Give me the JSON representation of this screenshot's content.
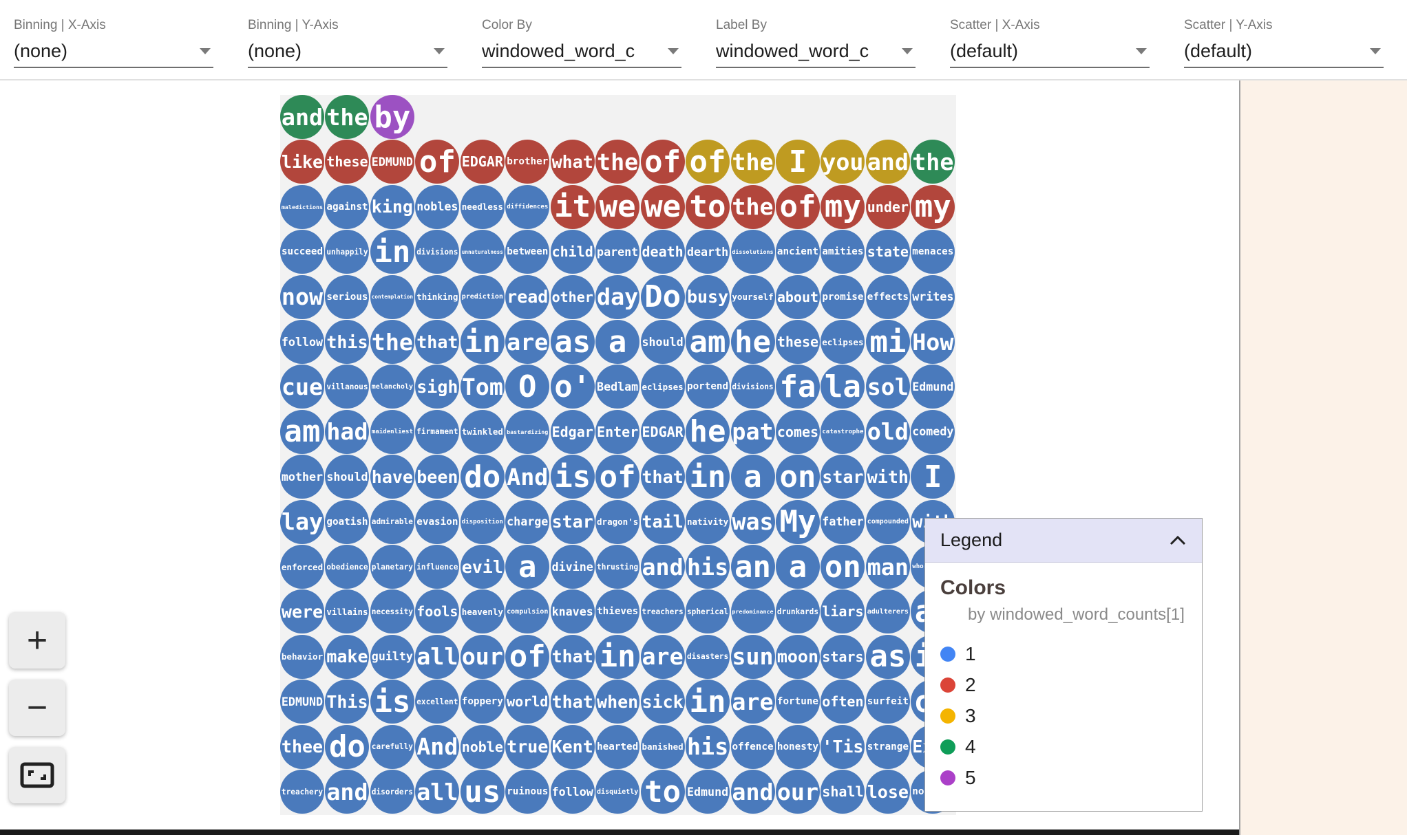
{
  "toolbar": {
    "controls": [
      {
        "label": "Binning | X-Axis",
        "value": "(none)"
      },
      {
        "label": "Binning | Y-Axis",
        "value": "(none)"
      },
      {
        "label": "Color By",
        "value": "windowed_word_c"
      },
      {
        "label": "Label By",
        "value": "windowed_word_c"
      },
      {
        "label": "Scatter | X-Axis",
        "value": "(default)"
      },
      {
        "label": "Scatter | Y-Axis",
        "value": "(default)"
      }
    ]
  },
  "colors": {
    "plot_background": "#f2f2f2",
    "side_panel_background": "#fcf2e8",
    "legend_header_background": "#e3e3f6",
    "bottom_bar": "#1a1a1a",
    "bubble_palette": {
      "1": "#4a7abc",
      "2": "#b2463c",
      "3": "#bf9b21",
      "4": "#2e8a57",
      "5": "#9c51c2"
    }
  },
  "legend": {
    "title": "Legend",
    "collapse_icon": "chevron-up-icon",
    "section_title": "Colors",
    "subtitle": "by windowed_word_counts[1]",
    "items": [
      {
        "label": "1",
        "color": "#4285f4"
      },
      {
        "label": "2",
        "color": "#db4437"
      },
      {
        "label": "3",
        "color": "#f4b400"
      },
      {
        "label": "4",
        "color": "#0f9d58"
      },
      {
        "label": "5",
        "color": "#ab40c8"
      }
    ]
  },
  "zoom_controls": {
    "zoom_in": "+",
    "zoom_out": "−",
    "fit_icon": "fit-to-screen-icon"
  },
  "grid": {
    "rows": [
      [
        [
          "and",
          4
        ],
        [
          "the",
          4
        ],
        [
          "by",
          5
        ]
      ],
      [
        [
          "like",
          2
        ],
        [
          "these",
          2
        ],
        [
          "EDMUND",
          2
        ],
        [
          "of",
          2
        ],
        [
          "EDGAR",
          2
        ],
        [
          "brother",
          2
        ],
        [
          "what",
          2
        ],
        [
          "the",
          2
        ],
        [
          "of",
          2
        ],
        [
          "of",
          3
        ],
        [
          "the",
          3
        ],
        [
          "I",
          3
        ],
        [
          "you",
          3
        ],
        [
          "and",
          3
        ],
        [
          "the",
          4
        ]
      ],
      [
        [
          "maledictions",
          1
        ],
        [
          "against",
          1
        ],
        [
          "king",
          1
        ],
        [
          "nobles",
          1
        ],
        [
          "needless",
          1
        ],
        [
          "diffidences",
          1
        ],
        [
          "it",
          2
        ],
        [
          "we",
          2
        ],
        [
          "we",
          2
        ],
        [
          "to",
          2
        ],
        [
          "the",
          2
        ],
        [
          "of",
          2
        ],
        [
          "my",
          2
        ],
        [
          "under",
          2
        ],
        [
          "my",
          2
        ]
      ],
      [
        [
          "succeed",
          1
        ],
        [
          "unhappily",
          1
        ],
        [
          "in",
          1
        ],
        [
          "divisions",
          1
        ],
        [
          "unnaturalness",
          1
        ],
        [
          "between",
          1
        ],
        [
          "child",
          1
        ],
        [
          "parent",
          1
        ],
        [
          "death",
          1
        ],
        [
          "dearth",
          1
        ],
        [
          "dissolutions",
          1
        ],
        [
          "ancient",
          1
        ],
        [
          "amities",
          1
        ],
        [
          "state",
          1
        ],
        [
          "menaces",
          1
        ]
      ],
      [
        [
          "now",
          1
        ],
        [
          "serious",
          1
        ],
        [
          "contemplation",
          1
        ],
        [
          "thinking",
          1
        ],
        [
          "prediction",
          1
        ],
        [
          "read",
          1
        ],
        [
          "other",
          1
        ],
        [
          "day",
          1
        ],
        [
          "Do",
          1
        ],
        [
          "busy",
          1
        ],
        [
          "yourself",
          1
        ],
        [
          "about",
          1
        ],
        [
          "promise",
          1
        ],
        [
          "effects",
          1
        ],
        [
          "writes",
          1
        ]
      ],
      [
        [
          "follow",
          1
        ],
        [
          "this",
          1
        ],
        [
          "the",
          1
        ],
        [
          "that",
          1
        ],
        [
          "in",
          1
        ],
        [
          "are",
          1
        ],
        [
          "as",
          1
        ],
        [
          "a",
          1
        ],
        [
          "should",
          1
        ],
        [
          "am",
          1
        ],
        [
          "he",
          1
        ],
        [
          "these",
          1
        ],
        [
          "eclipses",
          1
        ],
        [
          "mi",
          1
        ],
        [
          "How",
          1
        ]
      ],
      [
        [
          "cue",
          1
        ],
        [
          "villanous",
          1
        ],
        [
          "melancholy",
          1
        ],
        [
          "sigh",
          1
        ],
        [
          "Tom",
          1
        ],
        [
          "O",
          1
        ],
        [
          "o'",
          1
        ],
        [
          "Bedlam",
          1
        ],
        [
          "eclipses",
          1
        ],
        [
          "portend",
          1
        ],
        [
          "divisions",
          1
        ],
        [
          "fa",
          1
        ],
        [
          "la",
          1
        ],
        [
          "sol",
          1
        ],
        [
          "Edmund",
          1
        ]
      ],
      [
        [
          "am",
          1
        ],
        [
          "had",
          1
        ],
        [
          "maidenliest",
          1
        ],
        [
          "firmament",
          1
        ],
        [
          "twinkled",
          1
        ],
        [
          "bastardizing",
          1
        ],
        [
          "Edgar",
          1
        ],
        [
          "Enter",
          1
        ],
        [
          "EDGAR",
          1
        ],
        [
          "he",
          1
        ],
        [
          "pat",
          1
        ],
        [
          "comes",
          1
        ],
        [
          "catastrophe",
          1
        ],
        [
          "old",
          1
        ],
        [
          "comedy",
          1
        ]
      ],
      [
        [
          "mother",
          1
        ],
        [
          "should",
          1
        ],
        [
          "have",
          1
        ],
        [
          "been",
          1
        ],
        [
          "do",
          1
        ],
        [
          "And",
          1
        ],
        [
          "is",
          1
        ],
        [
          "of",
          1
        ],
        [
          "that",
          1
        ],
        [
          "in",
          1
        ],
        [
          "a",
          1
        ],
        [
          "on",
          1
        ],
        [
          "star",
          1
        ],
        [
          "with",
          1
        ],
        [
          "I",
          1
        ]
      ],
      [
        [
          "lay",
          1
        ],
        [
          "goatish",
          1
        ],
        [
          "admirable",
          1
        ],
        [
          "evasion",
          1
        ],
        [
          "disposition",
          1
        ],
        [
          "charge",
          1
        ],
        [
          "star",
          1
        ],
        [
          "dragon's",
          1
        ],
        [
          "tail",
          1
        ],
        [
          "nativity",
          1
        ],
        [
          "was",
          1
        ],
        [
          "My",
          1
        ],
        [
          "father",
          1
        ],
        [
          "compounded",
          1
        ],
        [
          "with",
          1
        ]
      ],
      [
        [
          "enforced",
          1
        ],
        [
          "obedience",
          1
        ],
        [
          "planetary",
          1
        ],
        [
          "influence",
          1
        ],
        [
          "evil",
          1
        ],
        [
          "a",
          1
        ],
        [
          "divine",
          1
        ],
        [
          "thrusting",
          1
        ],
        [
          "and",
          1
        ],
        [
          "his",
          1
        ],
        [
          "an",
          1
        ],
        [
          "a",
          1
        ],
        [
          "on",
          1
        ],
        [
          "man",
          1
        ],
        [
          "whoremaster",
          1
        ]
      ],
      [
        [
          "were",
          1
        ],
        [
          "villains",
          1
        ],
        [
          "necessity",
          1
        ],
        [
          "fools",
          1
        ],
        [
          "heavenly",
          1
        ],
        [
          "compulsion",
          1
        ],
        [
          "knaves",
          1
        ],
        [
          "thieves",
          1
        ],
        [
          "treachers",
          1
        ],
        [
          "spherical",
          1
        ],
        [
          "predominance",
          1
        ],
        [
          "drunkards",
          1
        ],
        [
          "liars",
          1
        ],
        [
          "adulterers",
          1
        ],
        [
          "an",
          1
        ]
      ],
      [
        [
          "behavior",
          1
        ],
        [
          "make",
          1
        ],
        [
          "guilty",
          1
        ],
        [
          "all",
          1
        ],
        [
          "our",
          1
        ],
        [
          "of",
          1
        ],
        [
          "that",
          1
        ],
        [
          "in",
          1
        ],
        [
          "are",
          1
        ],
        [
          "disasters",
          1
        ],
        [
          "sun",
          1
        ],
        [
          "moon",
          1
        ],
        [
          "stars",
          1
        ],
        [
          "as",
          1
        ],
        [
          "if",
          1
        ]
      ],
      [
        [
          "EDMUND",
          1
        ],
        [
          "This",
          1
        ],
        [
          "is",
          1
        ],
        [
          "excellent",
          1
        ],
        [
          "foppery",
          1
        ],
        [
          "world",
          1
        ],
        [
          "that",
          1
        ],
        [
          "when",
          1
        ],
        [
          "sick",
          1
        ],
        [
          "in",
          1
        ],
        [
          "are",
          1
        ],
        [
          "fortune",
          1
        ],
        [
          "often",
          1
        ],
        [
          "surfeit",
          1
        ],
        [
          "of",
          1
        ]
      ],
      [
        [
          "thee",
          1
        ],
        [
          "do",
          1
        ],
        [
          "carefully",
          1
        ],
        [
          "And",
          1
        ],
        [
          "noble",
          1
        ],
        [
          "true",
          1
        ],
        [
          "Kent",
          1
        ],
        [
          "hearted",
          1
        ],
        [
          "banished",
          1
        ],
        [
          "his",
          1
        ],
        [
          "offence",
          1
        ],
        [
          "honesty",
          1
        ],
        [
          "'Tis",
          1
        ],
        [
          "strange",
          1
        ],
        [
          "Exit",
          1
        ]
      ],
      [
        [
          "treachery",
          1
        ],
        [
          "and",
          1
        ],
        [
          "disorders",
          1
        ],
        [
          "all",
          1
        ],
        [
          "us",
          1
        ],
        [
          "ruinous",
          1
        ],
        [
          "follow",
          1
        ],
        [
          "disquietly",
          1
        ],
        [
          "to",
          1
        ],
        [
          "Edmund",
          1
        ],
        [
          "and",
          1
        ],
        [
          "our",
          1
        ],
        [
          "shall",
          1
        ],
        [
          "lose",
          1
        ],
        [
          "nothing",
          1
        ]
      ]
    ]
  }
}
